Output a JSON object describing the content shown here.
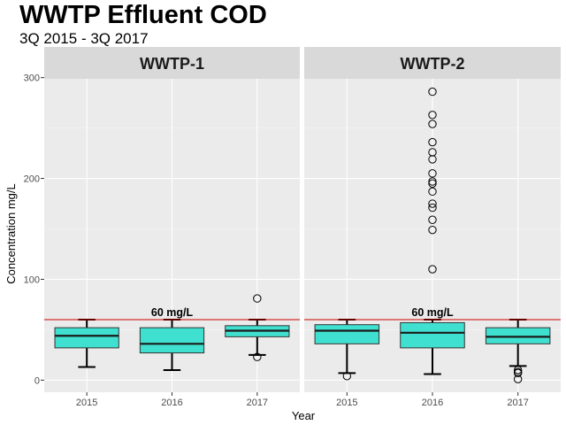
{
  "chart_data": {
    "type": "boxplot",
    "title": "WWTP Effluent COD",
    "subtitle": "3Q 2015 - 3Q 2017",
    "xlabel": "Year",
    "ylabel": "Concentration mg/L",
    "ylim": [
      -12,
      312
    ],
    "yticks": [
      0,
      100,
      200,
      300
    ],
    "categories": [
      "2015",
      "2016",
      "2017"
    ],
    "reference_line": {
      "value": 60,
      "label": "60 mg/L",
      "color": "#cc0000"
    },
    "box_fill": "#40e0d0",
    "panel_background": "#ebebeb",
    "strip_background": "#d9d9d9",
    "grid": true,
    "facets": [
      {
        "name": "WWTP-1",
        "boxes": [
          {
            "category": "2015",
            "min": 13,
            "q1": 32,
            "median": 44,
            "q3": 52,
            "max": 60,
            "outliers": []
          },
          {
            "category": "2016",
            "min": 10,
            "q1": 27,
            "median": 36,
            "q3": 52,
            "max": 60,
            "outliers": []
          },
          {
            "category": "2017",
            "min": 25,
            "q1": 43,
            "median": 49,
            "q3": 54,
            "max": 60,
            "outliers": [
              81,
              23
            ]
          }
        ]
      },
      {
        "name": "WWTP-2",
        "boxes": [
          {
            "category": "2015",
            "min": 7,
            "q1": 36,
            "median": 49,
            "q3": 55,
            "max": 60,
            "outliers": [
              4
            ]
          },
          {
            "category": "2016",
            "min": 6,
            "q1": 32,
            "median": 47,
            "q3": 57,
            "max": 60,
            "outliers": [
              286,
              263,
              254,
              236,
              226,
              219,
              205,
              197,
              195,
              187,
              175,
              171,
              159,
              149,
              110
            ]
          },
          {
            "category": "2017",
            "min": 14,
            "q1": 36,
            "median": 43,
            "q3": 52,
            "max": 60,
            "outliers": [
              10,
              8,
              7,
              1
            ]
          }
        ]
      }
    ]
  }
}
